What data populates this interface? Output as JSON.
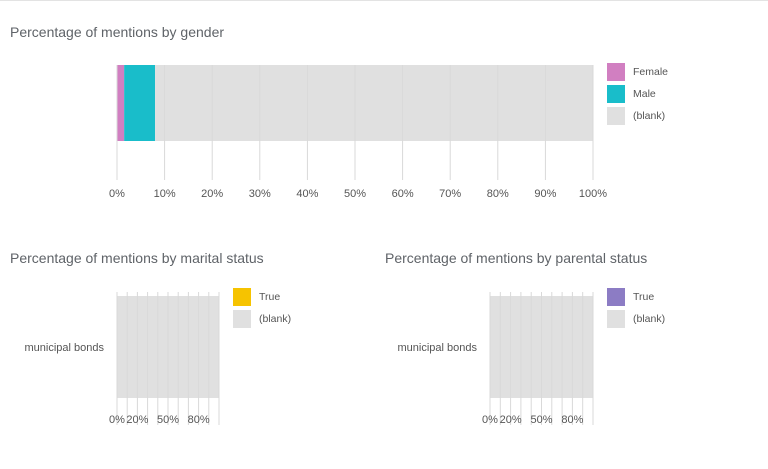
{
  "chart_data": [
    {
      "type": "bar",
      "orientation": "horizontal",
      "stacked": true,
      "title": "Percentage of mentions by gender",
      "categories": [
        ""
      ],
      "series": [
        {
          "name": "Female",
          "values": [
            1.5
          ],
          "color": "#d17fc1"
        },
        {
          "name": "Male",
          "values": [
            6.5
          ],
          "color": "#19bdca"
        },
        {
          "name": "(blank)",
          "values": [
            92.0
          ],
          "color": "#e0e0e0"
        }
      ],
      "xlim": [
        0,
        100
      ],
      "x_ticks": [
        "0%",
        "10%",
        "20%",
        "30%",
        "40%",
        "50%",
        "60%",
        "70%",
        "80%",
        "90%",
        "100%"
      ],
      "grid": true,
      "legend": "right"
    },
    {
      "type": "bar",
      "orientation": "horizontal",
      "stacked": true,
      "title": "Percentage of mentions by marital status",
      "categories": [
        "municipal bonds"
      ],
      "series": [
        {
          "name": "True",
          "values": [
            0
          ],
          "color": "#f6c300"
        },
        {
          "name": "(blank)",
          "values": [
            100
          ],
          "color": "#e0e0e0"
        }
      ],
      "xlim": [
        0,
        100
      ],
      "x_ticks": [
        "0%",
        "20%",
        "50%",
        "80%"
      ],
      "grid": true,
      "legend": "right"
    },
    {
      "type": "bar",
      "orientation": "horizontal",
      "stacked": true,
      "title": "Percentage of mentions by parental status",
      "categories": [
        "municipal bonds"
      ],
      "series": [
        {
          "name": "True",
          "values": [
            0
          ],
          "color": "#8c7cc4"
        },
        {
          "name": "(blank)",
          "values": [
            100
          ],
          "color": "#e0e0e0"
        }
      ],
      "xlim": [
        0,
        100
      ],
      "x_ticks": [
        "0%",
        "20%",
        "50%",
        "80%"
      ],
      "grid": true,
      "legend": "right"
    }
  ]
}
